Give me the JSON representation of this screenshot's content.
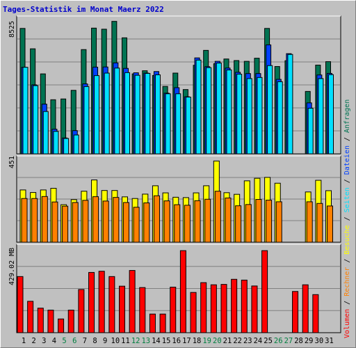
{
  "title": "Tages-Statistik im Monat Maerz 2022",
  "colors": {
    "anfragen": "#007352",
    "dateien": "#0040ff",
    "seiten": "#00e0ff",
    "besuche": "#ffff00",
    "rechner": "#ff8000",
    "volumen": "#ff0000",
    "weekend": "#008040",
    "weekday": "#000000",
    "panel_bg": "#c0c0c0",
    "grid": "#808080"
  },
  "legend": {
    "volumen": "Volumen",
    "rechner": "Rechner",
    "besuche": "Besuche",
    "seiten": "Seiten",
    "dateien": "Dateien",
    "anfragen": "Anfragen",
    "sep": " / "
  },
  "chart_data": [
    {
      "type": "bar",
      "panel": "top",
      "scale_label": "8525",
      "ylim": [
        0,
        8525
      ],
      "categories": [
        "1",
        "2",
        "3",
        "4",
        "5",
        "6",
        "7",
        "8",
        "9",
        "10",
        "11",
        "12",
        "13",
        "14",
        "15",
        "16",
        "17",
        "18",
        "19",
        "20",
        "21",
        "22",
        "23",
        "24",
        "25",
        "26",
        "27",
        "28",
        "29",
        "30",
        "31"
      ],
      "series": [
        {
          "name": "Anfragen",
          "values": [
            8000,
            6700,
            5100,
            3450,
            3500,
            4050,
            6650,
            8020,
            7950,
            8450,
            7400,
            5100,
            5300,
            5000,
            4300,
            5150,
            4100,
            5650,
            6600,
            5750,
            6050,
            5950,
            5900,
            6100,
            8000,
            5570,
            5940,
            null,
            3980,
            5660,
            5880
          ]
        },
        {
          "name": "Dateien",
          "values": [
            5520,
            4400,
            3170,
            1570,
            1010,
            1480,
            4460,
            5530,
            5540,
            5800,
            5450,
            5170,
            5150,
            5250,
            3870,
            4220,
            3640,
            6120,
            5560,
            5900,
            5470,
            5200,
            5120,
            5120,
            6950,
            4750,
            6390,
            null,
            3250,
            5030,
            5130
          ]
        },
        {
          "name": "Seiten",
          "values": [
            5520,
            4350,
            2700,
            1430,
            980,
            1200,
            4290,
            4990,
            5150,
            5470,
            5180,
            5010,
            5130,
            5040,
            3830,
            3830,
            3620,
            5980,
            5500,
            5790,
            5350,
            5080,
            4800,
            4870,
            5630,
            4600,
            6340,
            null,
            2910,
            4800,
            5050
          ]
        }
      ]
    },
    {
      "type": "bar",
      "panel": "middle",
      "scale_label": "451",
      "ylim": [
        0,
        451
      ],
      "categories": [
        "1",
        "2",
        "3",
        "4",
        "5",
        "6",
        "7",
        "8",
        "9",
        "10",
        "11",
        "12",
        "13",
        "14",
        "15",
        "16",
        "17",
        "18",
        "19",
        "20",
        "21",
        "22",
        "23",
        "24",
        "25",
        "26",
        "27",
        "28",
        "29",
        "30",
        "31"
      ],
      "series": [
        {
          "name": "Besuche",
          "values": [
            287,
            273,
            287,
            296,
            206,
            234,
            280,
            342,
            284,
            284,
            249,
            240,
            264,
            310,
            271,
            247,
            245,
            271,
            310,
            446,
            272,
            263,
            337,
            351,
            356,
            324,
            null,
            null,
            276,
            340,
            283
          ]
        },
        {
          "name": "Rechner",
          "values": [
            240,
            240,
            251,
            221,
            198,
            218,
            230,
            250,
            226,
            246,
            218,
            192,
            216,
            255,
            227,
            206,
            203,
            228,
            236,
            280,
            243,
            200,
            207,
            235,
            231,
            222,
            null,
            null,
            222,
            213,
            199
          ]
        }
      ]
    },
    {
      "type": "bar",
      "panel": "bottom",
      "scale_label": "429.02 MB",
      "ylim": [
        0,
        429.02
      ],
      "categories": [
        "1",
        "2",
        "3",
        "4",
        "5",
        "6",
        "7",
        "8",
        "9",
        "10",
        "11",
        "12",
        "13",
        "14",
        "15",
        "16",
        "17",
        "18",
        "19",
        "20",
        "21",
        "22",
        "23",
        "24",
        "25",
        "26",
        "27",
        "28",
        "29",
        "30",
        "31"
      ],
      "series": [
        {
          "name": "Volumen",
          "values": [
            286,
            160,
            125,
            115,
            70,
            115,
            220,
            307,
            313,
            286,
            237,
            317,
            230,
            95,
            95,
            232,
            418,
            205,
            255,
            244,
            246,
            272,
            268,
            238,
            418,
            null,
            null,
            210,
            244,
            194,
            null
          ]
        }
      ]
    }
  ],
  "x_days": [
    "1",
    "2",
    "3",
    "4",
    "5",
    "6",
    "7",
    "8",
    "9",
    "10",
    "11",
    "12",
    "13",
    "14",
    "15",
    "16",
    "17",
    "18",
    "19",
    "20",
    "21",
    "22",
    "23",
    "24",
    "25",
    "26",
    "27",
    "28",
    "29",
    "30",
    "31"
  ],
  "weekend_days": [
    "5",
    "6",
    "12",
    "13",
    "19",
    "20",
    "26",
    "27"
  ]
}
